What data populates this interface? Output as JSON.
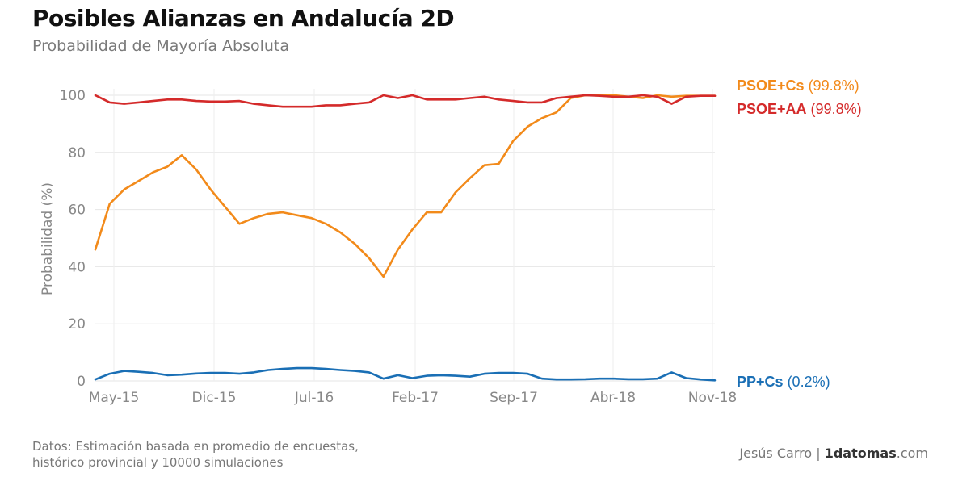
{
  "title": "Posibles Alianzas en Andalucía 2D",
  "subtitle": "Probabilidad de Mayoría Absoluta",
  "footer": {
    "source_line1": "Datos: Estimación basada en promedio de encuestas,",
    "source_line2": "histórico provincial y 10000 simulaciones",
    "author": "Jesús Carro |",
    "site_bold": "1datomas",
    "site_rest": ".com"
  },
  "chart_data": {
    "type": "line",
    "title": "Posibles Alianzas en Andalucía 2D",
    "subtitle": "Probabilidad de Mayoría Absoluta",
    "xlabel": "",
    "ylabel": "Probabilidad (%)",
    "ylim": [
      0,
      100
    ],
    "yticks": [
      0,
      20,
      40,
      60,
      80,
      100
    ],
    "xticks": [
      "May-15",
      "Dic-15",
      "Jul-16",
      "Feb-17",
      "Sep-17",
      "Abr-18",
      "Nov-18"
    ],
    "xrange": [
      "2015-04",
      "2018-11"
    ],
    "grid": true,
    "legend_placement": "right",
    "series": [
      {
        "name": "PSOE+Cs",
        "final_label": "(99.8%)",
        "color": "#f28a1a",
        "x": [
          "2015-04",
          "2015-05",
          "2015-06",
          "2015-07",
          "2015-08",
          "2015-09",
          "2015-10",
          "2015-11",
          "2015-12",
          "2016-01",
          "2016-02",
          "2016-03",
          "2016-04",
          "2016-05",
          "2016-06",
          "2016-07",
          "2016-08",
          "2016-09",
          "2016-10",
          "2016-11",
          "2016-12",
          "2017-01",
          "2017-02",
          "2017-03",
          "2017-04",
          "2017-05",
          "2017-06",
          "2017-07",
          "2017-08",
          "2017-09",
          "2017-10",
          "2017-11",
          "2017-12",
          "2018-01",
          "2018-02",
          "2018-03",
          "2018-04",
          "2018-05",
          "2018-06",
          "2018-07",
          "2018-08",
          "2018-09",
          "2018-10",
          "2018-11"
        ],
        "values": [
          46,
          62,
          67,
          70,
          73,
          75,
          79,
          74,
          67,
          61,
          55,
          57,
          58.5,
          59,
          58,
          57,
          55,
          52,
          48,
          43,
          36.5,
          46,
          53,
          59,
          59,
          66,
          71,
          75.5,
          76,
          84,
          89,
          92,
          94,
          99,
          100,
          100,
          100,
          99.5,
          99,
          100,
          99.5,
          99.8,
          99.8,
          99.8
        ]
      },
      {
        "name": "PSOE+AA",
        "final_label": "(99.8%)",
        "color": "#d42a2a",
        "x": [
          "2015-04",
          "2015-05",
          "2015-06",
          "2015-07",
          "2015-08",
          "2015-09",
          "2015-10",
          "2015-11",
          "2015-12",
          "2016-01",
          "2016-02",
          "2016-03",
          "2016-04",
          "2016-05",
          "2016-06",
          "2016-07",
          "2016-08",
          "2016-09",
          "2016-10",
          "2016-11",
          "2016-12",
          "2017-01",
          "2017-02",
          "2017-03",
          "2017-04",
          "2017-05",
          "2017-06",
          "2017-07",
          "2017-08",
          "2017-09",
          "2017-10",
          "2017-11",
          "2017-12",
          "2018-01",
          "2018-02",
          "2018-03",
          "2018-04",
          "2018-05",
          "2018-06",
          "2018-07",
          "2018-08",
          "2018-09",
          "2018-10",
          "2018-11"
        ],
        "values": [
          100,
          97.5,
          97,
          97.5,
          98,
          98.5,
          98.5,
          98,
          97.8,
          97.8,
          98,
          97,
          96.5,
          96,
          96,
          96,
          96.5,
          96.5,
          97,
          97.5,
          100,
          99,
          100,
          98.5,
          98.5,
          98.5,
          99,
          99.5,
          98.5,
          98,
          97.5,
          97.5,
          99,
          99.5,
          100,
          99.8,
          99.5,
          99.5,
          100,
          99.5,
          97,
          99.5,
          99.8,
          99.8
        ]
      },
      {
        "name": "PP+Cs",
        "final_label": "(0.2%)",
        "color": "#1a6fb5",
        "x": [
          "2015-04",
          "2015-05",
          "2015-06",
          "2015-07",
          "2015-08",
          "2015-09",
          "2015-10",
          "2015-11",
          "2015-12",
          "2016-01",
          "2016-02",
          "2016-03",
          "2016-04",
          "2016-05",
          "2016-06",
          "2016-07",
          "2016-08",
          "2016-09",
          "2016-10",
          "2016-11",
          "2016-12",
          "2017-01",
          "2017-02",
          "2017-03",
          "2017-04",
          "2017-05",
          "2017-06",
          "2017-07",
          "2017-08",
          "2017-09",
          "2017-10",
          "2017-11",
          "2017-12",
          "2018-01",
          "2018-02",
          "2018-03",
          "2018-04",
          "2018-05",
          "2018-06",
          "2018-07",
          "2018-08",
          "2018-09",
          "2018-10",
          "2018-11"
        ],
        "values": [
          0.5,
          2.5,
          3.5,
          3.2,
          2.8,
          2,
          2.2,
          2.6,
          2.8,
          2.8,
          2.5,
          3,
          3.8,
          4.2,
          4.5,
          4.5,
          4.2,
          3.8,
          3.5,
          3,
          0.8,
          2,
          1,
          1.8,
          2,
          1.8,
          1.5,
          2.5,
          2.8,
          2.8,
          2.5,
          0.8,
          0.5,
          0.5,
          0.6,
          0.8,
          0.8,
          0.6,
          0.6,
          0.8,
          3,
          1,
          0.5,
          0.2
        ]
      }
    ]
  }
}
